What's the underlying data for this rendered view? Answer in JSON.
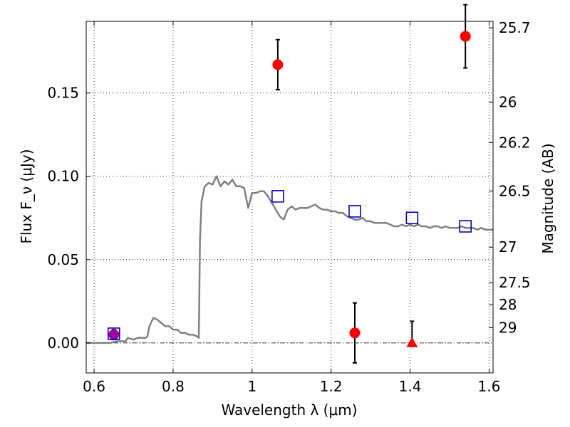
{
  "chart_data": {
    "type": "scatter",
    "xlabel": "Wavelength λ (μm)",
    "ylabel": "Flux F_ν (μJy)",
    "y2label": "Magnitude (AB)",
    "xlim": [
      0.58,
      1.61
    ],
    "ylim": [
      -0.018,
      0.193
    ],
    "xticks": [
      0.6,
      0.8,
      1.0,
      1.2,
      1.4,
      1.6
    ],
    "xtick_labels": [
      "0.6",
      "0.8",
      "1",
      "1.2",
      "1.4",
      "1.6"
    ],
    "yticks": [
      0.0,
      0.05,
      0.1,
      0.15
    ],
    "ytick_labels": [
      "0.00",
      "0.05",
      "0.10",
      "0.15"
    ],
    "y2ticks": [
      {
        "label": "25.7",
        "flux": 0.1891
      },
      {
        "label": "26",
        "flux": 0.1445
      },
      {
        "label": "26.2",
        "flux": 0.1202
      },
      {
        "label": "26.5",
        "flux": 0.0912
      },
      {
        "label": "27",
        "flux": 0.0575
      },
      {
        "label": "27.5",
        "flux": 0.0363
      },
      {
        "label": "28",
        "flux": 0.0229
      },
      {
        "label": "29",
        "flux": 0.0091
      }
    ],
    "grid": true,
    "zero_line": true,
    "series": [
      {
        "kind": "line",
        "color": "#808080",
        "x": [
          0.58,
          0.6,
          0.62,
          0.64,
          0.66,
          0.68,
          0.685,
          0.7,
          0.71,
          0.72,
          0.73,
          0.735,
          0.74,
          0.75,
          0.76,
          0.77,
          0.78,
          0.79,
          0.8,
          0.81,
          0.82,
          0.83,
          0.84,
          0.85,
          0.86,
          0.865,
          0.868,
          0.872,
          0.88,
          0.89,
          0.9,
          0.91,
          0.92,
          0.93,
          0.94,
          0.95,
          0.96,
          0.97,
          0.98,
          0.99,
          1.0,
          1.01,
          1.02,
          1.03,
          1.04,
          1.05,
          1.06,
          1.07,
          1.08,
          1.09,
          1.1,
          1.11,
          1.12,
          1.13,
          1.14,
          1.15,
          1.16,
          1.17,
          1.18,
          1.19,
          1.2,
          1.21,
          1.22,
          1.23,
          1.24,
          1.25,
          1.26,
          1.27,
          1.28,
          1.29,
          1.3,
          1.31,
          1.32,
          1.33,
          1.34,
          1.35,
          1.36,
          1.37,
          1.38,
          1.39,
          1.4,
          1.41,
          1.42,
          1.43,
          1.44,
          1.45,
          1.46,
          1.47,
          1.48,
          1.49,
          1.5,
          1.51,
          1.52,
          1.53,
          1.54,
          1.55,
          1.56,
          1.57,
          1.58,
          1.59,
          1.6,
          1.61
        ],
        "y": [
          0.0,
          0.0,
          0.0,
          0.0,
          0.001,
          0.001,
          0.003,
          0.002,
          0.003,
          0.003,
          0.003,
          0.004,
          0.01,
          0.015,
          0.014,
          0.012,
          0.01,
          0.01,
          0.008,
          0.008,
          0.006,
          0.006,
          0.005,
          0.005,
          0.004,
          0.003,
          0.062,
          0.085,
          0.094,
          0.096,
          0.095,
          0.1,
          0.094,
          0.097,
          0.095,
          0.098,
          0.094,
          0.094,
          0.093,
          0.081,
          0.09,
          0.09,
          0.091,
          0.091,
          0.088,
          0.084,
          0.08,
          0.076,
          0.074,
          0.08,
          0.082,
          0.08,
          0.081,
          0.081,
          0.081,
          0.082,
          0.083,
          0.081,
          0.08,
          0.08,
          0.079,
          0.079,
          0.078,
          0.078,
          0.076,
          0.075,
          0.074,
          0.074,
          0.075,
          0.073,
          0.073,
          0.072,
          0.072,
          0.072,
          0.072,
          0.071,
          0.07,
          0.07,
          0.071,
          0.07,
          0.071,
          0.07,
          0.071,
          0.07,
          0.07,
          0.069,
          0.07,
          0.07,
          0.069,
          0.07,
          0.069,
          0.069,
          0.069,
          0.07,
          0.069,
          0.069,
          0.069,
          0.068,
          0.069,
          0.068,
          0.068,
          0.068
        ]
      },
      {
        "kind": "points",
        "marker": "circle",
        "color": "#ff0000",
        "x": [
          1.065,
          1.26,
          1.54
        ],
        "y": [
          0.167,
          0.006,
          0.184
        ],
        "yerr": [
          0.015,
          0.018,
          0.019
        ]
      },
      {
        "kind": "points",
        "marker": "circle",
        "color": "#a000a0",
        "x": [
          0.65
        ],
        "y": [
          0.005
        ],
        "yerr": [
          0.003
        ]
      },
      {
        "kind": "points",
        "marker": "triangle",
        "color": "#ff0000",
        "x": [
          1.405
        ],
        "y": [
          0.0
        ],
        "yerr_up": [
          0.013
        ],
        "yerr_down": [
          0.0
        ]
      },
      {
        "kind": "points",
        "marker": "open-square",
        "color": "#0000cc",
        "x": [
          0.65,
          1.065,
          1.26,
          1.405,
          1.54
        ],
        "y": [
          0.0055,
          0.088,
          0.079,
          0.075,
          0.07
        ]
      }
    ]
  }
}
